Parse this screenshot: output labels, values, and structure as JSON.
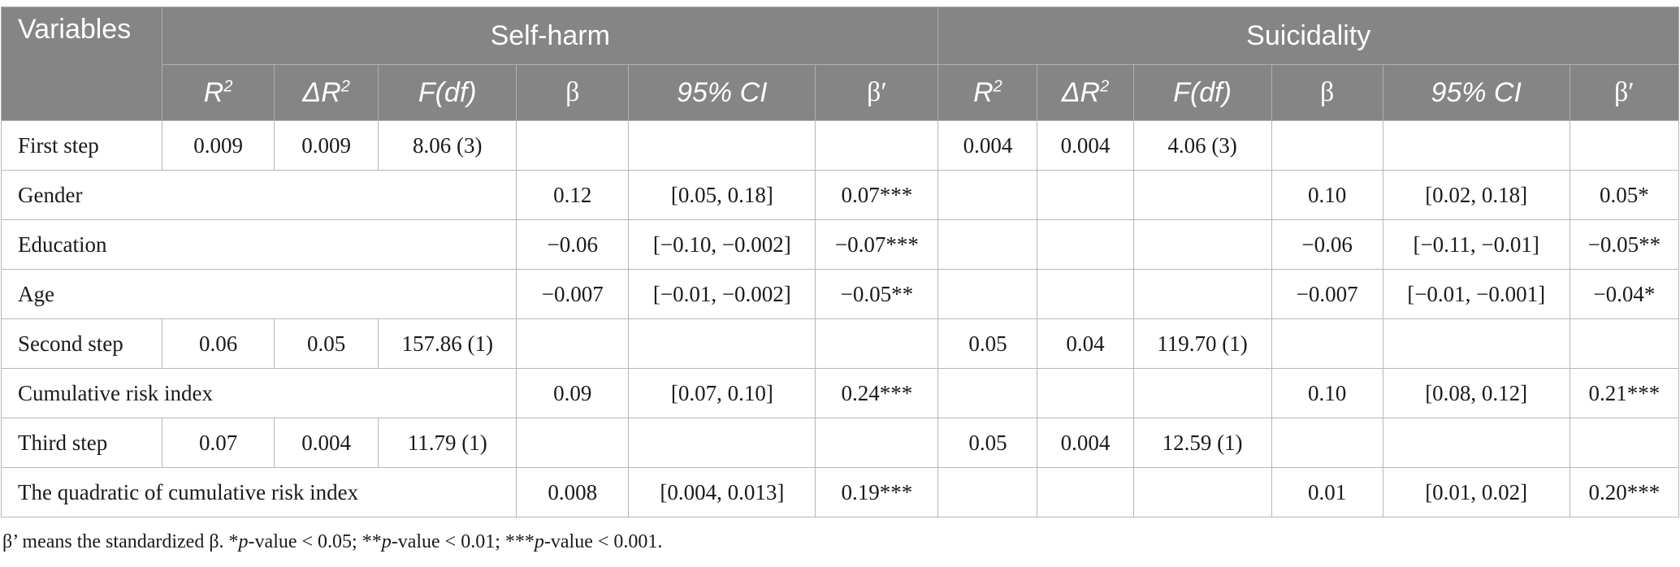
{
  "header": {
    "variables": "Variables",
    "group_selfharm": "Self-harm",
    "group_suicidality": "Suicidality",
    "cols": {
      "r2_base": "R",
      "r2_sup": "2",
      "delta_r2_base": "ΔR",
      "delta_r2_sup": "2",
      "fdf": "F(df)",
      "beta": "β",
      "ci": "95% CI",
      "beta_std": "β′"
    }
  },
  "rows": [
    {
      "label": "First step",
      "sh": {
        "r2": "0.009",
        "dr2": "0.009",
        "f": "8.06 (3)",
        "b": "",
        "ci": "",
        "bs": ""
      },
      "su": {
        "r2": "0.004",
        "dr2": "0.004",
        "f": "4.06 (3)",
        "b": "",
        "ci": "",
        "bs": ""
      }
    },
    {
      "label": "Gender",
      "sh": {
        "r2": "",
        "dr2": "",
        "f": "",
        "b": "0.12",
        "ci": "[0.05, 0.18]",
        "bs": "0.07***"
      },
      "su": {
        "r2": "",
        "dr2": "",
        "f": "",
        "b": "0.10",
        "ci": "[0.02, 0.18]",
        "bs": "0.05*"
      }
    },
    {
      "label": "Education",
      "sh": {
        "r2": "",
        "dr2": "",
        "f": "",
        "b": "−0.06",
        "ci": "[−0.10, −0.002]",
        "bs": "−0.07***"
      },
      "su": {
        "r2": "",
        "dr2": "",
        "f": "",
        "b": "−0.06",
        "ci": "[−0.11, −0.01]",
        "bs": "−0.05**"
      }
    },
    {
      "label": "Age",
      "sh": {
        "r2": "",
        "dr2": "",
        "f": "",
        "b": "−0.007",
        "ci": "[−0.01, −0.002]",
        "bs": "−0.05**"
      },
      "su": {
        "r2": "",
        "dr2": "",
        "f": "",
        "b": "−0.007",
        "ci": "[−0.01, −0.001]",
        "bs": "−0.04*"
      }
    },
    {
      "label": "Second step",
      "sh": {
        "r2": "0.06",
        "dr2": "0.05",
        "f": "157.86 (1)",
        "b": "",
        "ci": "",
        "bs": ""
      },
      "su": {
        "r2": "0.05",
        "dr2": "0.04",
        "f": "119.70 (1)",
        "b": "",
        "ci": "",
        "bs": ""
      }
    },
    {
      "label": "Cumulative risk index",
      "sh": {
        "r2": "",
        "dr2": "",
        "f": "",
        "b": "0.09",
        "ci": "[0.07, 0.10]",
        "bs": "0.24***"
      },
      "su": {
        "r2": "",
        "dr2": "",
        "f": "",
        "b": "0.10",
        "ci": "[0.08, 0.12]",
        "bs": "0.21***"
      }
    },
    {
      "label": "Third step",
      "sh": {
        "r2": "0.07",
        "dr2": "0.004",
        "f": "11.79 (1)",
        "b": "",
        "ci": "",
        "bs": ""
      },
      "su": {
        "r2": "0.05",
        "dr2": "0.004",
        "f": "12.59 (1)",
        "b": "",
        "ci": "",
        "bs": ""
      }
    },
    {
      "label": "The quadratic of cumulative risk index",
      "sh": {
        "r2": "",
        "dr2": "",
        "f": "",
        "b": "0.008",
        "ci": "[0.004, 0.013]",
        "bs": "0.19***"
      },
      "su": {
        "r2": "",
        "dr2": "",
        "f": "",
        "b": "0.01",
        "ci": "[0.01, 0.02]",
        "bs": "0.20***"
      }
    }
  ],
  "note": {
    "part1": "β’ means the standardized β. *",
    "p1": "p",
    "part2": "-value < 0.05; **",
    "p2": "p",
    "part3": "-value < 0.01; ***",
    "p3": "p",
    "part4": "-value < 0.001."
  }
}
